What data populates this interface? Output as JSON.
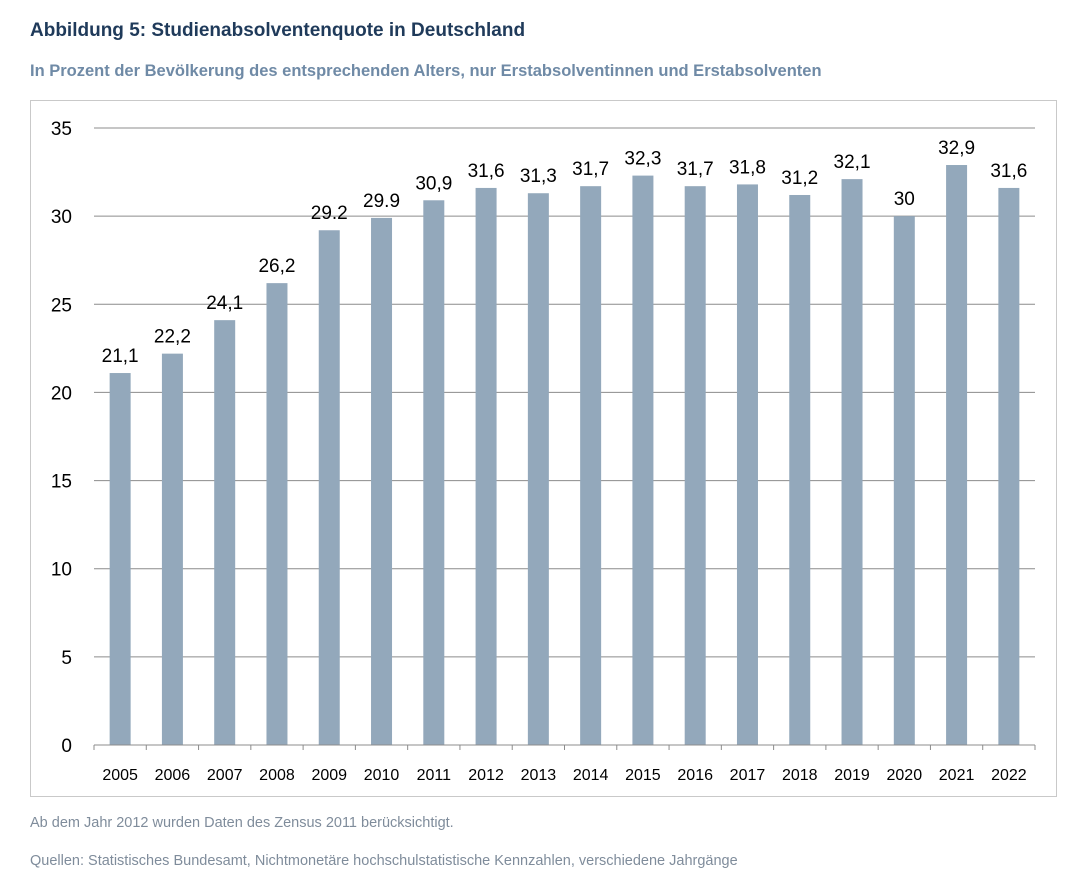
{
  "header": {
    "title": "Abbildung 5: Studienabsolventenquote in Deutschland",
    "subtitle": "In Prozent der Bevölkerung des entsprechenden Alters, nur Erstabsolventinnen und Erstabsolventen"
  },
  "footer": {
    "note": "Ab dem Jahr 2012 wurden Daten des Zensus 2011 berücksichtigt.",
    "source": "Quellen: Statistisches Bundesamt, Nichtmonetäre hochschulstatistische Kennzahlen, verschiedene Jahrgänge"
  },
  "chart_data": {
    "type": "bar",
    "categories": [
      "2005",
      "2006",
      "2007",
      "2008",
      "2009",
      "2010",
      "2011",
      "2012",
      "2013",
      "2014",
      "2015",
      "2016",
      "2017",
      "2018",
      "2019",
      "2020",
      "2021",
      "2022"
    ],
    "values": [
      21.1,
      22.2,
      24.1,
      26.2,
      29.2,
      29.9,
      30.9,
      31.6,
      31.3,
      31.7,
      32.3,
      31.7,
      31.8,
      31.2,
      32.1,
      30,
      32.9,
      31.6
    ],
    "data_labels": [
      "21,1",
      "22,2",
      "24,1",
      "26,2",
      "29.2",
      "29.9",
      "30,9",
      "31,6",
      "31,3",
      "31,7",
      "32,3",
      "31,7",
      "31,8",
      "31,2",
      "32,1",
      "30",
      "32,9",
      "31,6"
    ],
    "ylim": [
      0,
      35
    ],
    "yticks": [
      0,
      5,
      10,
      15,
      20,
      25,
      30,
      35
    ],
    "grid": true,
    "legend": "none",
    "bar_color": "#93a8bb",
    "grid_color": "#8c8c8c"
  }
}
